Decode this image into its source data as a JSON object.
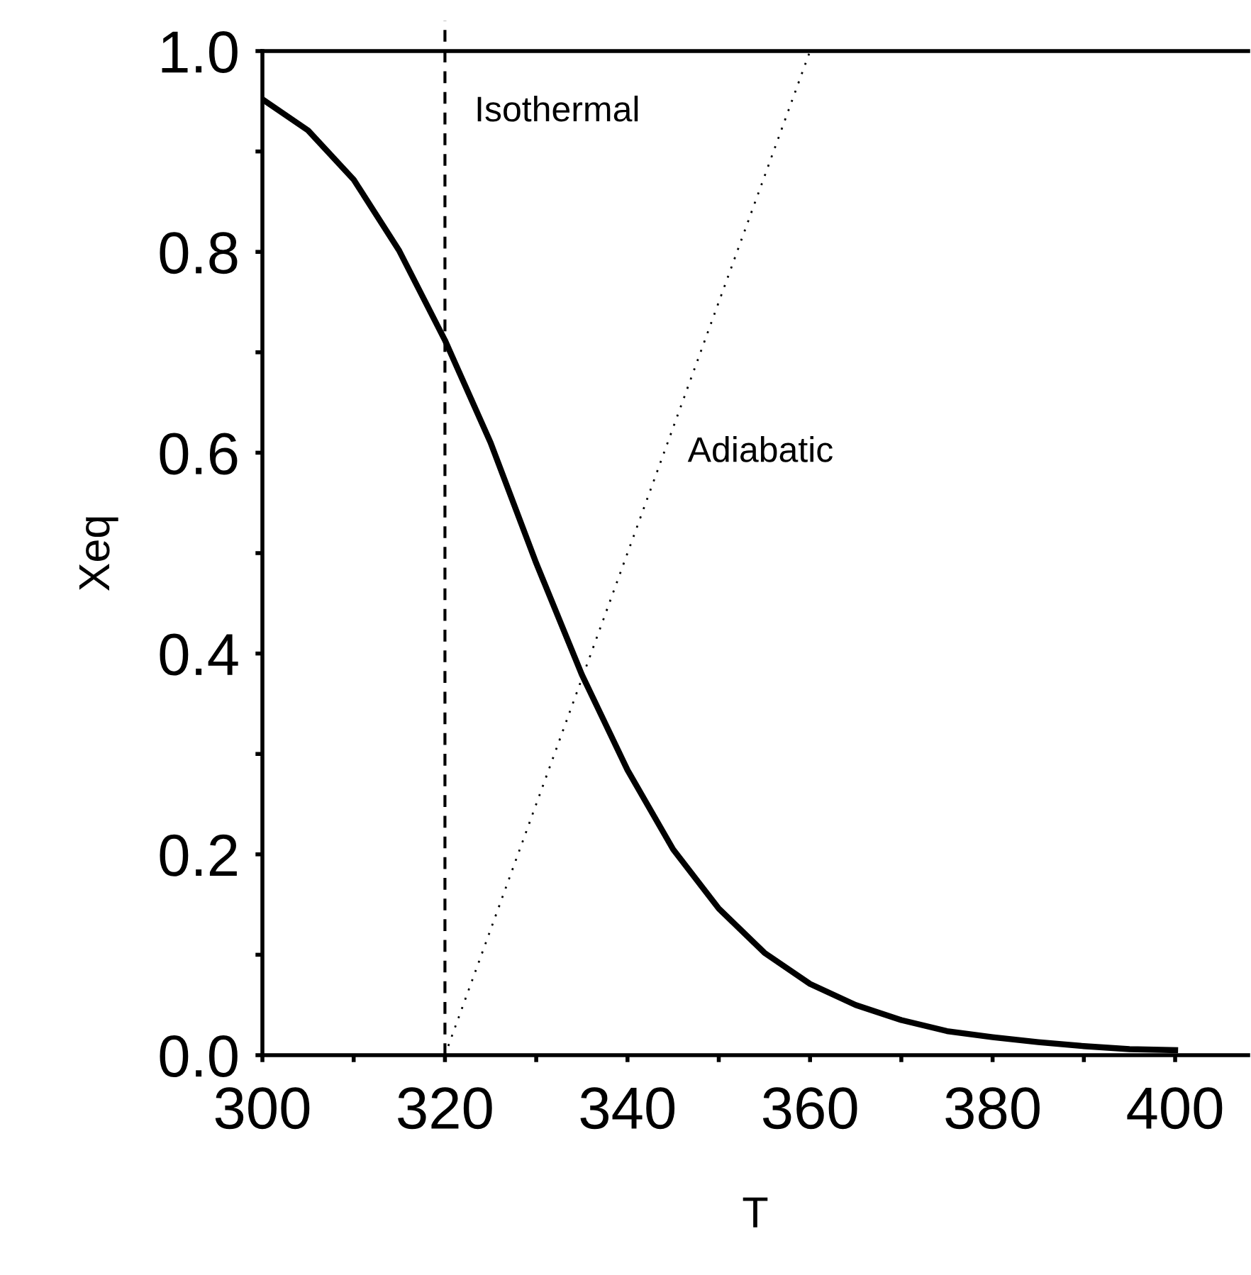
{
  "chart_data": {
    "type": "line",
    "xlabel": "T",
    "ylabel": "Xeq",
    "xlim": [
      300,
      408
    ],
    "ylim": [
      0,
      1.0
    ],
    "xticks": [
      300,
      {
        "value": 310,
        "label": null
      },
      320,
      {
        "value": 330,
        "label": null
      },
      340,
      {
        "value": 350,
        "label": null
      },
      360,
      {
        "value": 370,
        "label": null
      },
      380,
      {
        "value": 390,
        "label": null
      },
      400
    ],
    "yticks": [
      {
        "value": 0,
        "label": "0.0"
      },
      {
        "value": 0.1,
        "label": null
      },
      0.2,
      {
        "value": 0.3,
        "label": null
      },
      0.4,
      {
        "value": 0.5,
        "label": null
      },
      0.6,
      {
        "value": 0.7,
        "label": null
      },
      0.8,
      {
        "value": 0.9,
        "label": null
      },
      {
        "value": 1.0,
        "label": "1.0"
      }
    ],
    "grid": false,
    "legend": false,
    "marker": "none",
    "series": [
      {
        "color": "#000000",
        "line_style": "solid",
        "x": [
          300,
          305,
          310,
          315,
          320,
          325,
          330,
          335,
          340,
          345,
          350,
          355,
          360,
          365,
          370,
          375,
          380,
          385,
          390,
          395,
          400
        ],
        "values": [
          0.952,
          0.921,
          0.872,
          0.801,
          0.712,
          0.61,
          0.49,
          0.379,
          0.284,
          0.205,
          0.146,
          0.102,
          0.071,
          0.05,
          0.035,
          0.024,
          0.018,
          0.013,
          0.009,
          0.006,
          0.005
        ]
      },
      {
        "name": "Adiabatic",
        "color": "#000000",
        "line_style": "dotted",
        "x": [
          320,
          360
        ],
        "values": [
          0,
          1.0
        ]
      }
    ],
    "ref_lines": [
      {
        "axis": "x",
        "value": 320,
        "label": "Isothermal",
        "color": "#000000",
        "line_style": "dashed"
      }
    ]
  }
}
